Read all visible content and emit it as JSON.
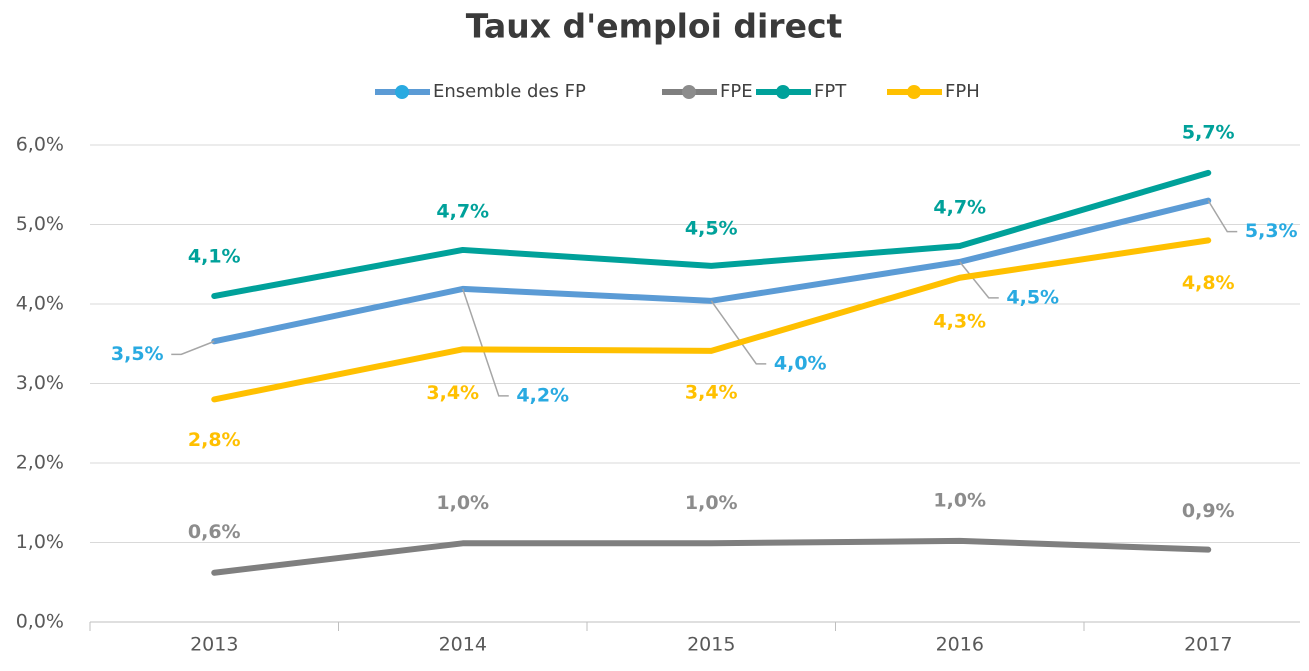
{
  "chart_data": {
    "type": "line",
    "title": "Taux d'emploi direct",
    "categories": [
      "2013",
      "2014",
      "2015",
      "2016",
      "2017"
    ],
    "series": [
      {
        "name": "Ensemble des FP",
        "color": "#5b9bd5",
        "label_color": "#29aae1",
        "values": [
          3.53,
          4.19,
          4.04,
          4.53,
          5.3
        ],
        "value_labels": [
          "3,5%",
          "4,2%",
          "4,0%",
          "4,5%",
          "5,3%"
        ]
      },
      {
        "name": "FPE",
        "color": "#7f7f7f",
        "label_color": "#8c8c8c",
        "values": [
          0.62,
          0.99,
          0.99,
          1.02,
          0.91
        ],
        "value_labels": [
          "0,6%",
          "1,0%",
          "1,0%",
          "1,0%",
          "0,9%"
        ]
      },
      {
        "name": "FPT",
        "color": "#00a19a",
        "label_color": "#00a19a",
        "values": [
          4.1,
          4.68,
          4.48,
          4.73,
          5.65
        ],
        "value_labels": [
          "4,1%",
          "4,7%",
          "4,5%",
          "4,7%",
          "5,7%"
        ]
      },
      {
        "name": "FPH",
        "color": "#ffc000",
        "label_color": "#ffc000",
        "values": [
          2.8,
          3.43,
          3.41,
          4.33,
          4.8
        ],
        "value_labels": [
          "2,8%",
          "3,4%",
          "3,4%",
          "4,3%",
          "4,8%"
        ]
      }
    ],
    "ylim": [
      0,
      6
    ],
    "yticks": [
      {
        "value": 0,
        "label": "0,0%"
      },
      {
        "value": 1,
        "label": "1,0%"
      },
      {
        "value": 2,
        "label": "2,0%"
      },
      {
        "value": 3,
        "label": "3,0%"
      },
      {
        "value": 4,
        "label": "4,0%"
      },
      {
        "value": 5,
        "label": "5,0%"
      },
      {
        "value": 6,
        "label": "6,0%"
      }
    ],
    "grid": true,
    "legend": "top"
  }
}
